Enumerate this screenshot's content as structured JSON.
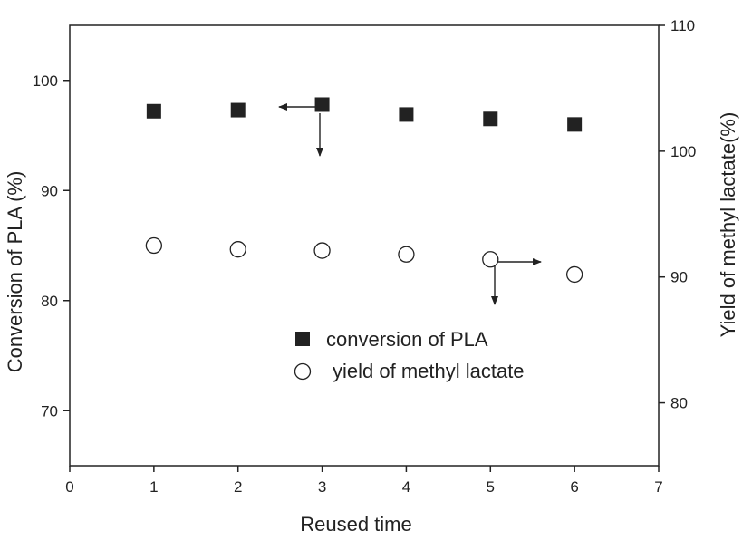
{
  "chart_data": {
    "type": "scatter",
    "xlabel": "Reused time",
    "ylabel_left": "Conversion of PLA (%)",
    "ylabel_right": "Yield of methyl lactate(%)",
    "xlim": [
      0,
      7
    ],
    "ylim_left": [
      65,
      105
    ],
    "ylim_right": [
      75,
      110
    ],
    "x_ticks": [
      0,
      1,
      2,
      3,
      4,
      5,
      6,
      7
    ],
    "y_ticks_left": [
      70,
      80,
      90,
      100
    ],
    "y_ticks_right": [
      80,
      90,
      100,
      110
    ],
    "grid": false,
    "legend_position": "center",
    "series": [
      {
        "name": "conversion of PLA",
        "axis": "left",
        "marker": "filled-square",
        "color": "#222222",
        "x": [
          1,
          2,
          3,
          4,
          5,
          6
        ],
        "y": [
          97.2,
          97.3,
          97.8,
          96.9,
          96.5,
          96.0
        ]
      },
      {
        "name": "yield of methyl lactate",
        "axis": "right",
        "marker": "open-circle",
        "color": "#222222",
        "x": [
          1,
          2,
          3,
          4,
          5,
          6
        ],
        "y": [
          92.5,
          92.2,
          92.1,
          91.8,
          91.4,
          90.2
        ]
      }
    ]
  }
}
